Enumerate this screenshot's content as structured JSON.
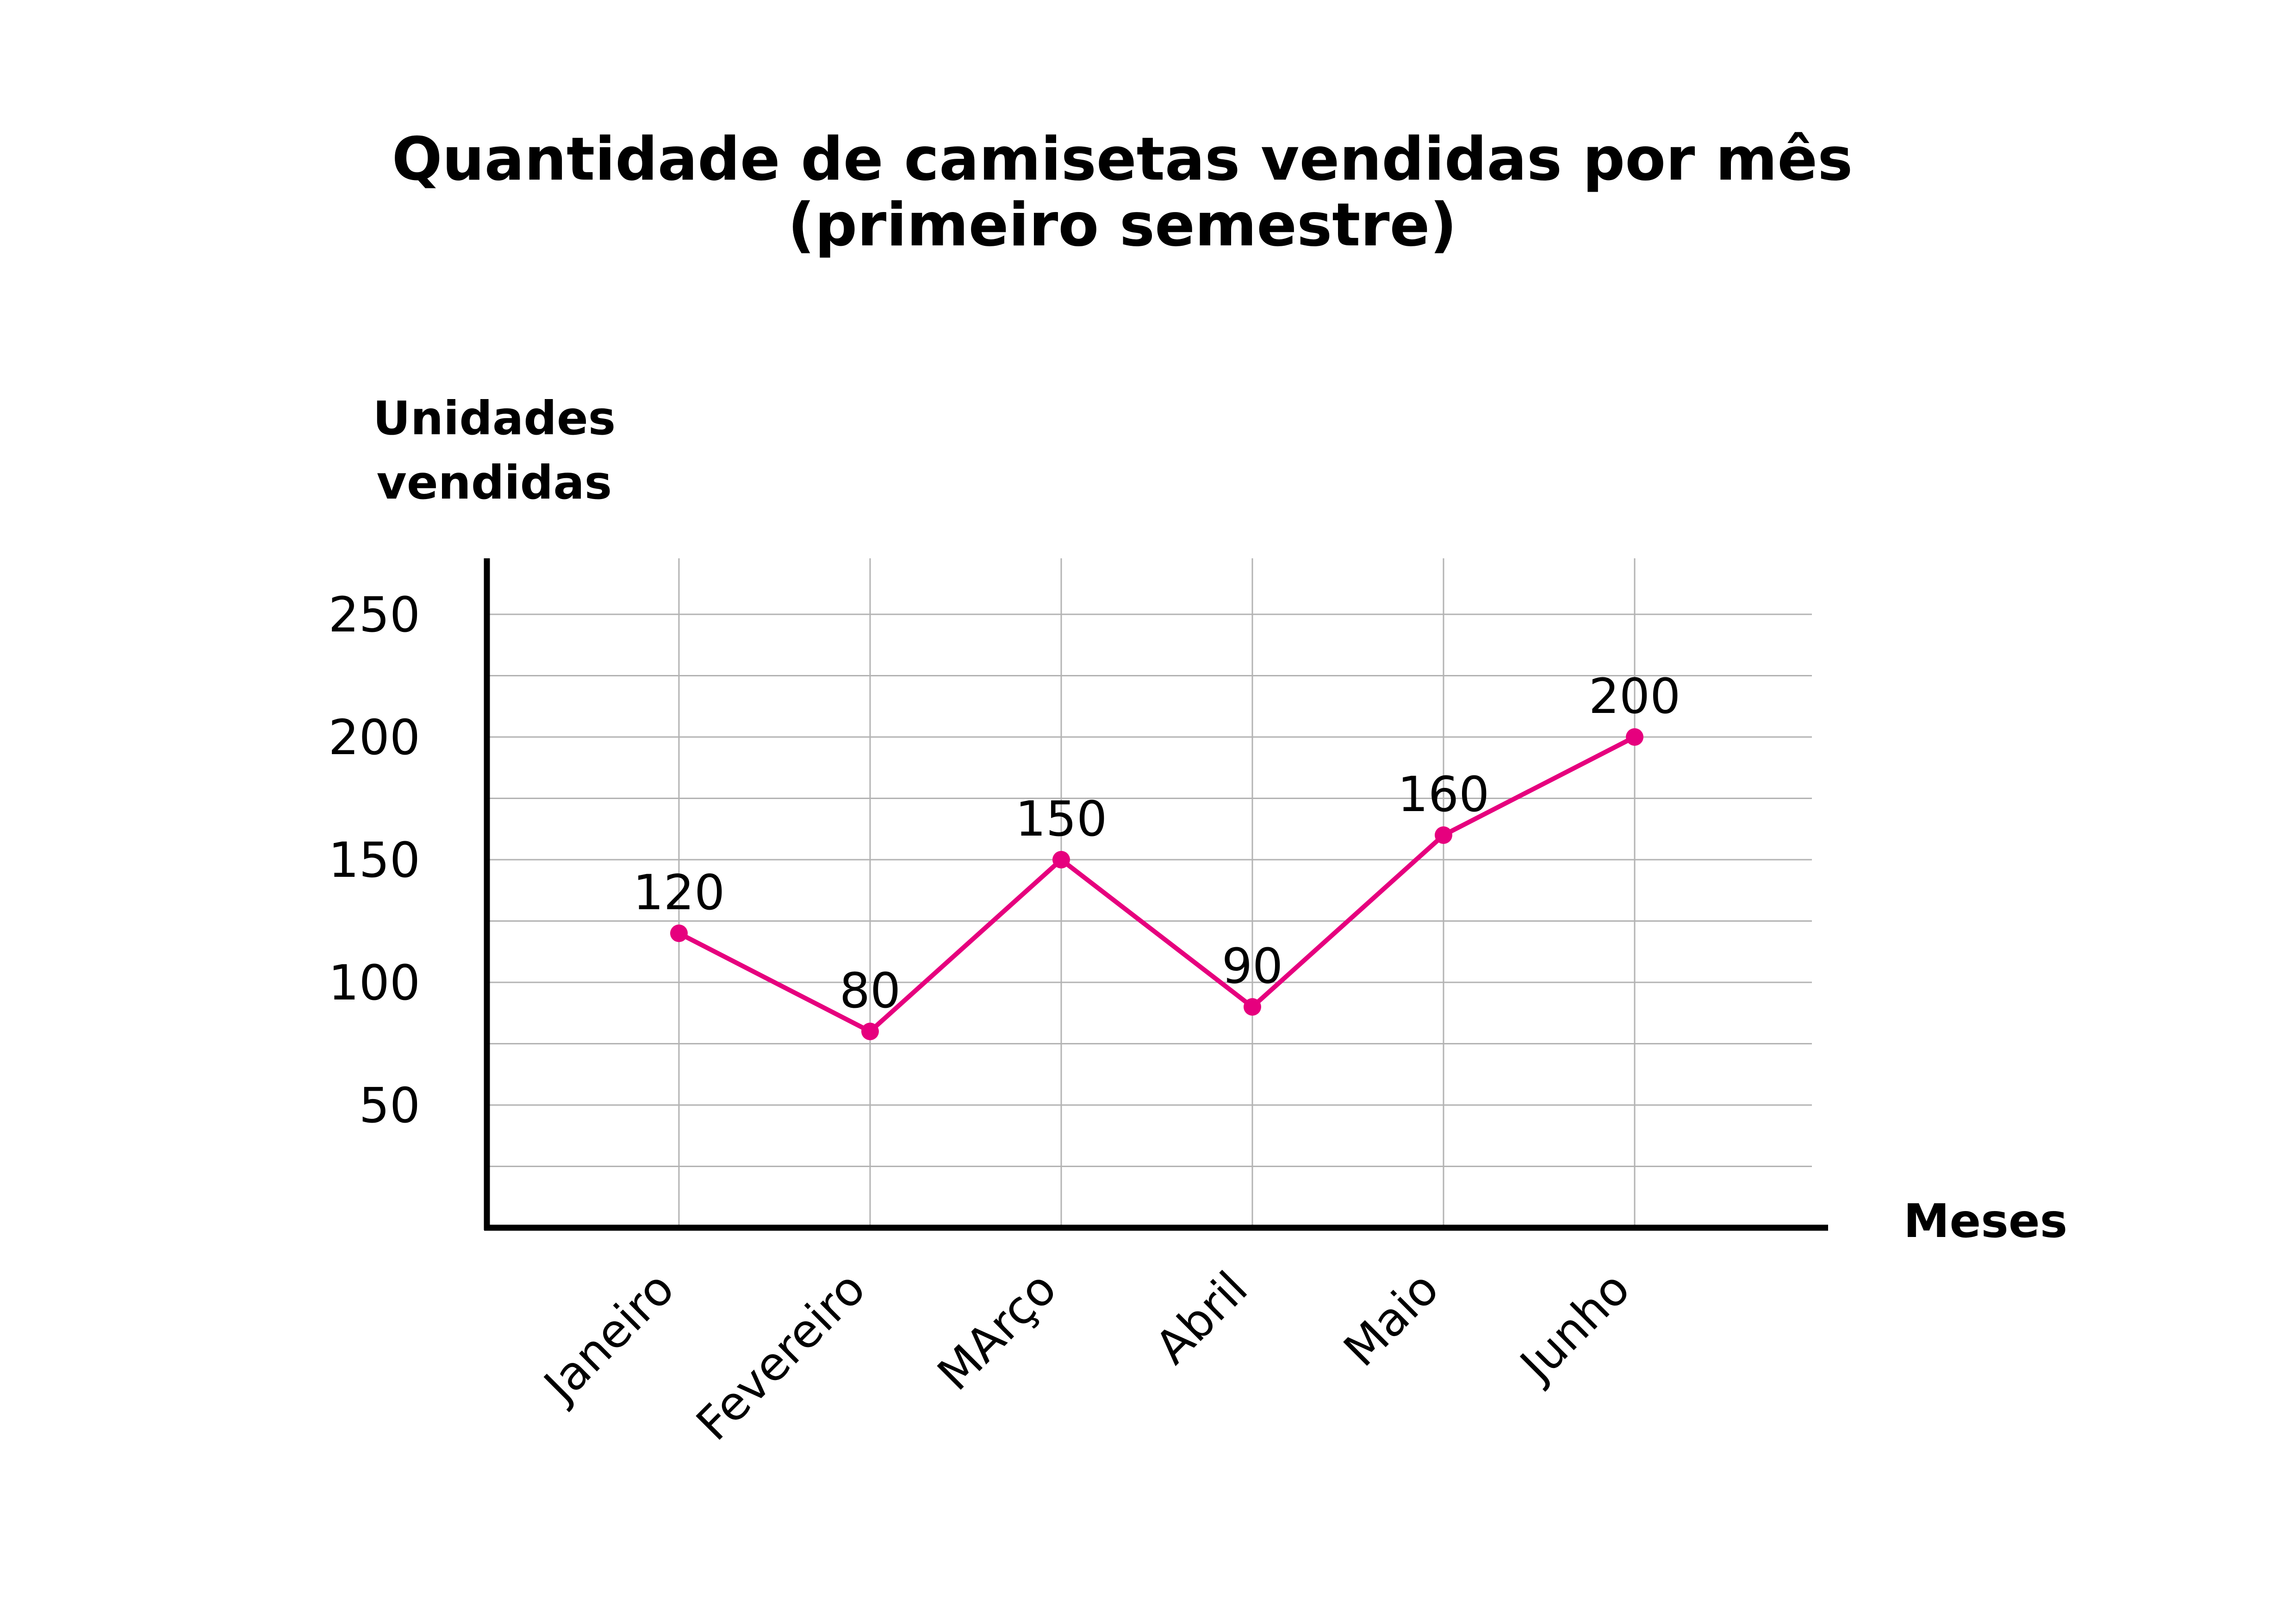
{
  "chart_data": {
    "type": "line",
    "title": [
      "Quantidade de camisetas vendidas por mês",
      "(primeiro semestre)"
    ],
    "ylabel": [
      "Unidades",
      "vendidas"
    ],
    "xlabel": "Meses",
    "categories": [
      "Janeiro",
      "Fevereiro",
      "MArço",
      "Abril",
      "Maio",
      "Junho"
    ],
    "series": [
      {
        "values": [
          120,
          80,
          150,
          90,
          160,
          200
        ],
        "labels": [
          "120",
          "80",
          "150",
          "90",
          "160",
          "200"
        ],
        "color": "#e6007e"
      }
    ],
    "yticks": [
      "50",
      "100",
      "150",
      "200",
      "250"
    ],
    "ylim": [
      0,
      262
    ],
    "grid": true,
    "colors": {
      "axis": "#000000",
      "grid": "#b3b3b3",
      "line": "#e6007e",
      "text": "#000000"
    }
  }
}
